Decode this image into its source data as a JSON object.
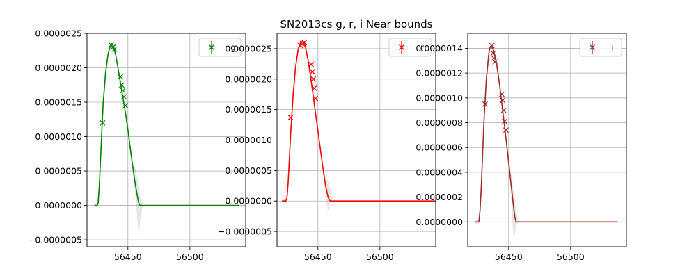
{
  "title": "SN2013cs  g, r, i Near bounds",
  "chart_data": [
    {
      "type": "line",
      "band": "g",
      "color": "#008000",
      "xlim": [
        56417,
        56545
      ],
      "ylim": [
        -6e-07,
        2.5e-06
      ],
      "xticks": [
        56450,
        56500
      ],
      "yticks": [
        -5e-07,
        0,
        5e-07,
        1e-06,
        1.5e-06,
        2e-06,
        2.5e-06
      ],
      "ytick_labels": [
        "−0.0000005",
        "0.0000000",
        "0.0000005",
        "0.0000010",
        "0.0000015",
        "0.0000020",
        "0.0000025"
      ],
      "legend": {
        "label": "g",
        "placement": "top-right"
      },
      "grid": true,
      "model": {
        "x": [
          56423,
          56425,
          56426,
          56427,
          56428,
          56429,
          56430,
          56432,
          56434,
          56436,
          56437,
          56438,
          56440,
          56442,
          56444,
          56446,
          56448,
          56450,
          56452,
          56454,
          56456,
          56458,
          56459,
          56460,
          56470,
          56500,
          56540
        ],
        "y": [
          0,
          0,
          3e-08,
          3e-07,
          7e-07,
          1.1e-06,
          1.48e-06,
          1.93e-06,
          2.2e-06,
          2.33e-06,
          2.35e-06,
          2.33e-06,
          2.2e-06,
          2e-06,
          1.78e-06,
          1.56e-06,
          1.35e-06,
          1.1e-06,
          8.2e-07,
          5.5e-07,
          3e-07,
          1e-07,
          2e-08,
          0,
          0,
          0,
          0
        ]
      },
      "band_upper": {
        "x": [
          56423,
          56425,
          56427,
          56430,
          56436,
          56440,
          56446,
          56450,
          56454,
          56456,
          56458,
          56460,
          56462,
          56540
        ],
        "y": [
          2e-08,
          3e-08,
          3.5e-07,
          1.5e-06,
          2.35e-06,
          2.22e-06,
          1.58e-06,
          1.14e-06,
          6.2e-07,
          5.5e-07,
          3.6e-07,
          1e-07,
          0,
          0
        ]
      },
      "band_lower": {
        "x": [
          56423,
          56425,
          56427,
          56430,
          56436,
          56440,
          56446,
          56450,
          56454,
          56456,
          56458,
          56459,
          56460,
          56462,
          56540
        ],
        "y": [
          -2e-08,
          -3e-08,
          2.5e-07,
          1.46e-06,
          2.31e-06,
          2.18e-06,
          1.54e-06,
          1.06e-06,
          4.8e-07,
          1.5e-07,
          -2.8e-07,
          -4.5e-07,
          -2e-07,
          0,
          0
        ]
      },
      "points": {
        "x": [
          56429.5,
          56436.5,
          56438.0,
          56439.0,
          56444.0,
          56445.0,
          56446.0,
          56446.8,
          56448.0
        ],
        "y": [
          1.2e-06,
          2.33e-06,
          2.3e-06,
          2.27e-06,
          1.87e-06,
          1.75e-06,
          1.67e-06,
          1.58e-06,
          1.45e-06
        ]
      }
    },
    {
      "type": "line",
      "band": "r",
      "color": "#ff0000",
      "xlim": [
        56417,
        56545
      ],
      "ylim": [
        -7.5e-07,
        2.75e-06
      ],
      "xticks": [
        56450,
        56500
      ],
      "yticks": [
        -5e-07,
        0,
        5e-07,
        1e-06,
        1.5e-06,
        2e-06,
        2.5e-06
      ],
      "ytick_labels": [
        "−0.0000005",
        "0.0000000",
        "0.0000005",
        "0.0000010",
        "0.0000015",
        "0.0000020",
        "0.0000025"
      ],
      "legend": {
        "label": "r",
        "placement": "top-right"
      },
      "grid": true,
      "model": {
        "x": [
          56421,
          56424,
          56425,
          56426,
          56428,
          56430,
          56432,
          56434,
          56436,
          56438,
          56439,
          56440,
          56442,
          56444,
          56446,
          56448,
          56450,
          56452,
          56454,
          56456,
          56458,
          56459,
          56460,
          56470,
          56500,
          56545
        ],
        "y": [
          0,
          0,
          5e-08,
          3e-07,
          1.1e-06,
          1.75e-06,
          2.2e-06,
          2.48e-06,
          2.6e-06,
          2.62e-06,
          2.6e-06,
          2.52e-06,
          2.32e-06,
          2.05e-06,
          1.75e-06,
          1.45e-06,
          1.15e-06,
          8.5e-07,
          5.5e-07,
          2.7e-07,
          8e-08,
          2e-08,
          0,
          0,
          0,
          0
        ]
      },
      "band_upper": {
        "x": [
          56421,
          56424,
          56426,
          56430,
          56438,
          56442,
          56448,
          56452,
          56454,
          56456,
          56458,
          56460,
          56462,
          56545
        ],
        "y": [
          2e-08,
          3e-08,
          3.5e-07,
          1.78e-06,
          2.65e-06,
          2.35e-06,
          1.48e-06,
          9e-07,
          6e-07,
          4.2e-07,
          3.3e-07,
          1.8e-07,
          0,
          0
        ]
      },
      "band_lower": {
        "x": [
          56421,
          56424,
          56425,
          56426,
          56430,
          56438,
          56442,
          56448,
          56452,
          56454,
          56456,
          56458,
          56460,
          56462,
          56545
        ],
        "y": [
          -2e-08,
          -3e-08,
          -5e-08,
          2.5e-07,
          1.72e-06,
          2.59e-06,
          2.29e-06,
          1.42e-06,
          8e-07,
          4.8e-07,
          1.4e-07,
          -1.8e-07,
          -1e-08,
          0,
          0
        ]
      },
      "points": {
        "x": [
          56428.0,
          56436.0,
          56437.5,
          56439.0,
          56444.5,
          56445.5,
          56446.3,
          56447.0,
          56448.0
        ],
        "y": [
          1.37e-06,
          2.55e-06,
          2.58e-06,
          2.6e-06,
          2.24e-06,
          2.12e-06,
          2e-06,
          1.85e-06,
          1.68e-06
        ]
      }
    },
    {
      "type": "line",
      "band": "i",
      "color": "#a52a2a",
      "xlim": [
        56417,
        56545
      ],
      "ylim": [
        -2e-07,
        1.52e-06
      ],
      "xticks": [
        56450,
        56500
      ],
      "yticks": [
        0,
        2e-07,
        4e-07,
        6e-07,
        8e-07,
        1e-06,
        1.2e-06,
        1.4e-06
      ],
      "ytick_labels": [
        "0.0000000",
        "0.0000002",
        "0.0000004",
        "0.0000006",
        "0.0000008",
        "0.0000010",
        "0.0000012",
        "0.0000014"
      ],
      "legend": {
        "label": "i",
        "placement": "top-right"
      },
      "grid": true,
      "model": {
        "x": [
          56423,
          56426,
          56427,
          56428,
          56430,
          56432,
          56434,
          56435,
          56436,
          56438,
          56440,
          56442,
          56444,
          56446,
          56448,
          56450,
          56452,
          56454,
          56455,
          56456,
          56460,
          56500,
          56538
        ],
        "y": [
          0,
          0,
          1e-07,
          3e-07,
          8e-07,
          1.15e-06,
          1.36e-06,
          1.41e-06,
          1.42e-06,
          1.38e-06,
          1.29e-06,
          1.16e-06,
          1e-06,
          8.3e-07,
          6.6e-07,
          4.8e-07,
          3e-07,
          1.2e-07,
          4e-08,
          0,
          0,
          0,
          0
        ]
      },
      "band_upper": {
        "x": [
          56423,
          56426,
          56428,
          56432,
          56436,
          56440,
          56446,
          56450,
          56452,
          56454,
          56456,
          56458,
          56538
        ],
        "y": [
          1e-08,
          2e-08,
          3.2e-07,
          1.17e-06,
          1.44e-06,
          1.31e-06,
          8.5e-07,
          5.1e-07,
          4e-07,
          2.5e-07,
          1e-07,
          0,
          0
        ]
      },
      "band_lower": {
        "x": [
          56423,
          56426,
          56428,
          56432,
          56436,
          56440,
          56446,
          56450,
          56452,
          56453,
          56454,
          56455,
          56456,
          56458,
          56538
        ],
        "y": [
          -1e-08,
          -2e-08,
          2.8e-07,
          1.13e-06,
          1.4e-06,
          1.27e-06,
          8.1e-07,
          4.5e-07,
          2.2e-07,
          1e-08,
          -1.3e-07,
          -1e-07,
          -2e-08,
          0,
          0
        ]
      },
      "points": {
        "x": [
          56431.0,
          56436.5,
          56437.5,
          56438.2,
          56439.0,
          56444.5,
          56445.2,
          56446.0,
          56446.8,
          56447.8
        ],
        "y": [
          9.5e-07,
          1.42e-06,
          1.36e-06,
          1.32e-06,
          1.29e-06,
          1.03e-06,
          9.8e-07,
          9e-07,
          8.1e-07,
          7.4e-07
        ]
      }
    }
  ]
}
